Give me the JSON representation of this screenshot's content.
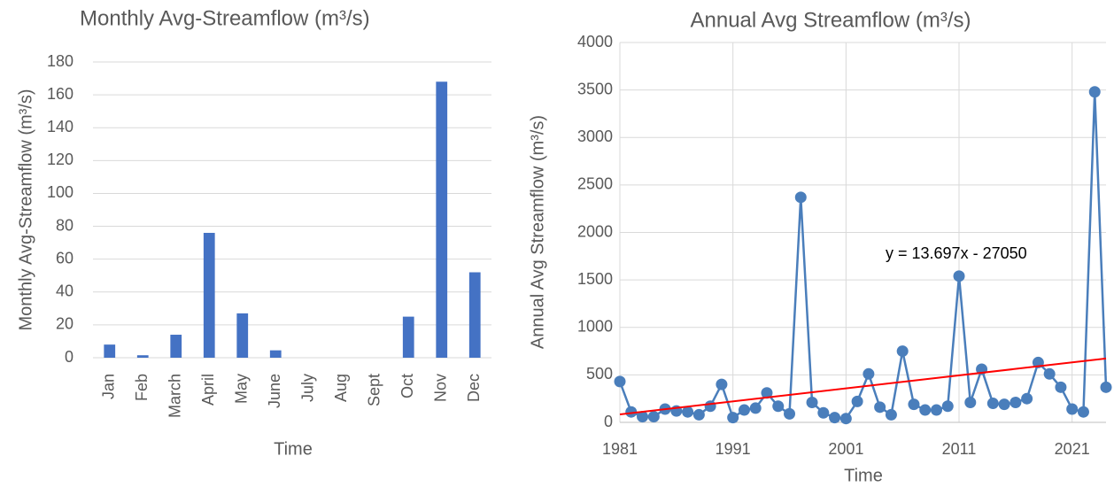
{
  "chart_data": [
    {
      "type": "bar",
      "title": "Monthly Avg-Streamflow (m³/s)",
      "x_label": "Time",
      "y_label": "Monthly Avg-Streamflow (m³/s)",
      "categories": [
        "Jan",
        "Feb",
        "March",
        "April",
        "May",
        "June",
        "July",
        "Aug",
        "Sept",
        "Oct",
        "Nov",
        "Dec"
      ],
      "values": [
        8,
        1.5,
        14,
        76,
        27,
        4.5,
        0,
        0,
        0,
        25,
        168,
        52
      ],
      "color": "#4472c4",
      "ylim": [
        0,
        180
      ],
      "yticks": [
        0,
        20,
        40,
        60,
        80,
        100,
        120,
        140,
        160,
        180
      ],
      "grid": true
    },
    {
      "type": "line",
      "title": "Annual Avg Streamflow (m³/s)",
      "x_label": "Time",
      "y_label": "Annual Avg Streamflow (m³/s)",
      "x": [
        1981,
        1982,
        1983,
        1984,
        1985,
        1986,
        1987,
        1988,
        1989,
        1990,
        1991,
        1992,
        1993,
        1994,
        1995,
        1996,
        1997,
        1998,
        1999,
        2000,
        2001,
        2002,
        2003,
        2004,
        2005,
        2006,
        2007,
        2008,
        2009,
        2010,
        2011,
        2012,
        2013,
        2014,
        2015,
        2016,
        2017,
        2018,
        2019,
        2020,
        2021,
        2022,
        2023,
        2024
      ],
      "values": [
        430,
        110,
        60,
        60,
        140,
        120,
        110,
        80,
        170,
        400,
        50,
        130,
        150,
        310,
        170,
        90,
        2370,
        210,
        100,
        50,
        40,
        220,
        510,
        160,
        80,
        750,
        190,
        130,
        130,
        170,
        1540,
        210,
        560,
        200,
        190,
        210,
        250,
        630,
        510,
        370,
        140,
        110,
        3480,
        370
      ],
      "color": "#4a7ebb",
      "xlim": [
        1981,
        2024
      ],
      "xticks": [
        1981,
        1991,
        2001,
        2011,
        2021
      ],
      "ylim": [
        0,
        4000
      ],
      "yticks": [
        0,
        500,
        1000,
        1500,
        2000,
        2500,
        3000,
        3500,
        4000
      ],
      "grid": true,
      "trendline": {
        "slope": 13.697,
        "intercept": -27050,
        "color": "#ff0000",
        "label": "y = 13.697x - 27050"
      }
    }
  ]
}
